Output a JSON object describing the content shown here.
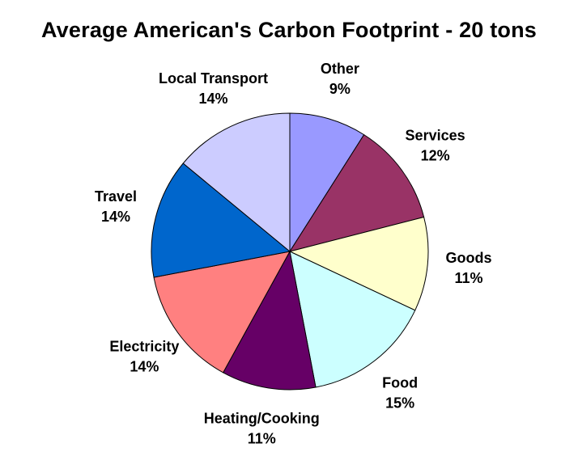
{
  "chart_data": {
    "type": "pie",
    "title": "Average American's Carbon Footprint - 20 tons",
    "start_angle_deg": 0,
    "direction": "clockwise",
    "slices": [
      {
        "label": "Other",
        "value": 9,
        "value_label": "9%",
        "color": "#9999ff"
      },
      {
        "label": "Services",
        "value": 12,
        "value_label": "12%",
        "color": "#993366"
      },
      {
        "label": "Goods",
        "value": 11,
        "value_label": "11%",
        "color": "#ffffcc"
      },
      {
        "label": "Food",
        "value": 15,
        "value_label": "15%",
        "color": "#ccffff"
      },
      {
        "label": "Heating/Cooking",
        "value": 11,
        "value_label": "11%",
        "color": "#660066"
      },
      {
        "label": "Electricity",
        "value": 14,
        "value_label": "14%",
        "color": "#ff8080"
      },
      {
        "label": "Travel",
        "value": 14,
        "value_label": "14%",
        "color": "#0066cc"
      },
      {
        "label": "Local Transport",
        "value": 14,
        "value_label": "14%",
        "color": "#ccccff"
      }
    ]
  }
}
